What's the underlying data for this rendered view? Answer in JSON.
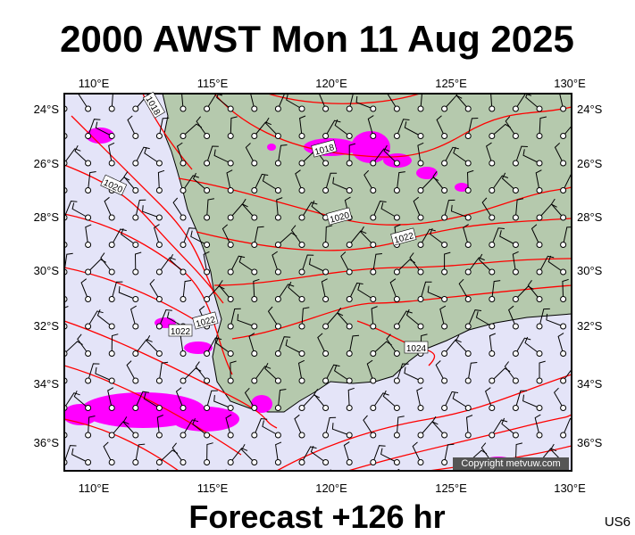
{
  "title": "2000 AWST Mon 11 Aug 2025",
  "footer": "Forecast +126 hr",
  "code": "US6",
  "copyright": "Copyright metvuw.com",
  "lon_ticks": [
    "110°E",
    "115°E",
    "120°E",
    "125°E",
    "130°E"
  ],
  "lat_ticks": [
    "24°S",
    "26°S",
    "28°S",
    "30°S",
    "32°S",
    "34°S",
    "36°S"
  ],
  "isobar_labels": [
    "1018",
    "1020",
    "1018",
    "1020",
    "1022",
    "1022",
    "1022",
    "1024"
  ]
}
